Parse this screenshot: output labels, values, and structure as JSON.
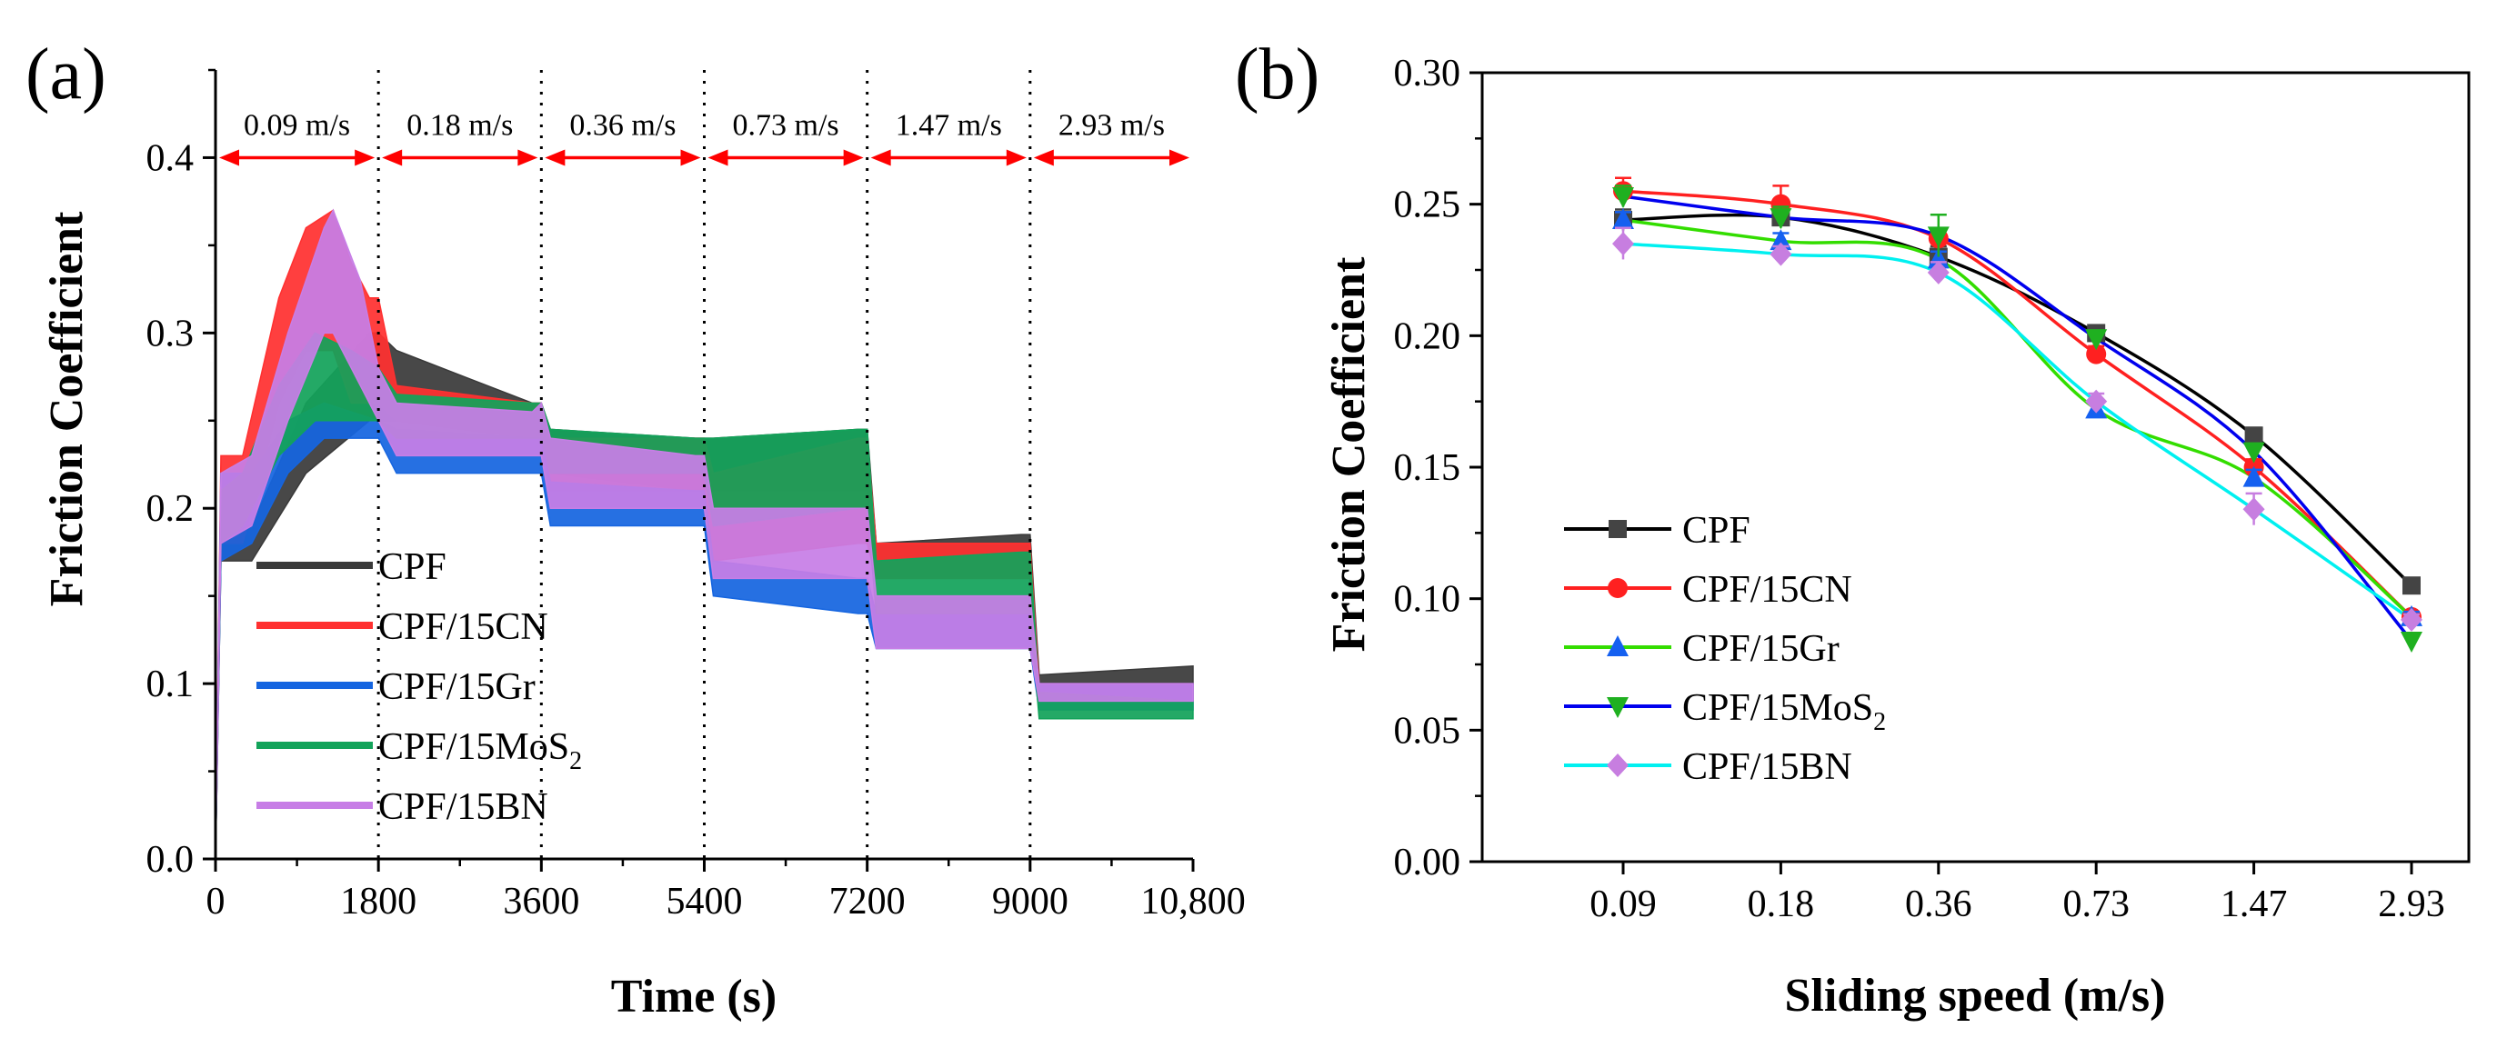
{
  "colors": {
    "CPF": "#3a3a3a",
    "CPF/15CN": "#ff3030",
    "CPF/15Gr": "#1565e0",
    "CPF/15MoS2": "#13a35a",
    "CPF/15BN": "#c77ee6",
    "b_CPF": "#000000",
    "b_CN": "#ff2020",
    "b_Gr": "#33dd00",
    "b_MoS2": "#0000ee",
    "b_BN": "#00f0f0",
    "b_Gr_marker": "#1560f0",
    "b_MoS2_marker": "#1fb020",
    "b_BN_marker": "#c77ee0",
    "speed_marker": "#ff0000"
  },
  "chart_data": [
    {
      "type": "line",
      "panel_label": "(a)",
      "xlabel": "Time (s)",
      "ylabel": "Friction Coefficient",
      "xlim": [
        0,
        10800
      ],
      "ylim": [
        0,
        0.45
      ],
      "xticks": [
        0,
        1800,
        3600,
        5400,
        7200,
        9000,
        10800
      ],
      "xtick_labels": [
        "0",
        "1800",
        "3600",
        "5400",
        "7200",
        "9000",
        "10,800"
      ],
      "yticks": [
        0.0,
        0.1,
        0.2,
        0.3,
        0.4
      ],
      "ytick_labels": [
        "0.0",
        "0.1",
        "0.2",
        "0.3",
        "0.4"
      ],
      "grid": false,
      "legend": "lower-left",
      "speed_segments": [
        {
          "label": "0.09 m/s",
          "start": 0,
          "end": 1800
        },
        {
          "label": "0.18 m/s",
          "start": 1800,
          "end": 3600
        },
        {
          "label": "0.36 m/s",
          "start": 3600,
          "end": 5400
        },
        {
          "label": "0.73 m/s",
          "start": 5400,
          "end": 7200
        },
        {
          "label": "1.47 m/s",
          "start": 7200,
          "end": 9000
        },
        {
          "label": "2.93 m/s",
          "start": 9000,
          "end": 10800
        }
      ],
      "series": [
        {
          "name": "CPF",
          "legend_main": "CPF",
          "legend_sub": "",
          "x": [
            0,
            60,
            400,
            1000,
            1700,
            1800,
            2000,
            3500,
            3600,
            3700,
            5300,
            5400,
            5500,
            7100,
            7200,
            7300,
            8900,
            9000,
            9100,
            10800
          ],
          "low": [
            0,
            0.17,
            0.17,
            0.22,
            0.25,
            0.25,
            0.25,
            0.24,
            0.24,
            0.22,
            0.21,
            0.21,
            0.21,
            0.21,
            0.21,
            0.16,
            0.16,
            0.16,
            0.1,
            0.1
          ],
          "high": [
            0,
            0.19,
            0.19,
            0.26,
            0.3,
            0.3,
            0.29,
            0.26,
            0.26,
            0.245,
            0.24,
            0.24,
            0.24,
            0.245,
            0.245,
            0.18,
            0.185,
            0.185,
            0.105,
            0.11
          ]
        },
        {
          "name": "CPF/15CN",
          "legend_main": "CPF/15CN",
          "legend_sub": "",
          "x": [
            0,
            60,
            300,
            700,
            1000,
            1300,
            1500,
            1700,
            1800,
            2000,
            3500,
            3600,
            3700,
            5300,
            5400,
            5500,
            7100,
            7200,
            7300,
            8900,
            9000,
            9100,
            10800
          ],
          "low": [
            0,
            0.18,
            0.18,
            0.26,
            0.29,
            0.29,
            0.26,
            0.26,
            0.26,
            0.25,
            0.24,
            0.24,
            0.21,
            0.21,
            0.21,
            0.17,
            0.18,
            0.18,
            0.16,
            0.16,
            0.16,
            0.09,
            0.09
          ],
          "high": [
            0,
            0.23,
            0.23,
            0.32,
            0.36,
            0.37,
            0.34,
            0.32,
            0.32,
            0.27,
            0.26,
            0.26,
            0.24,
            0.24,
            0.24,
            0.22,
            0.24,
            0.24,
            0.18,
            0.18,
            0.18,
            0.1,
            0.1
          ]
        },
        {
          "name": "CPF/15Gr",
          "legend_main": "CPF/15Gr",
          "legend_sub": "",
          "x": [
            0,
            60,
            400,
            800,
            1200,
            1800,
            2000,
            3500,
            3600,
            3700,
            5300,
            5400,
            5500,
            7100,
            7200,
            7300,
            8900,
            9000,
            9100,
            10800
          ],
          "low": [
            0,
            0.17,
            0.18,
            0.22,
            0.24,
            0.24,
            0.22,
            0.22,
            0.22,
            0.19,
            0.19,
            0.19,
            0.15,
            0.14,
            0.14,
            0.12,
            0.12,
            0.12,
            0.085,
            0.085
          ],
          "high": [
            0,
            0.22,
            0.22,
            0.25,
            0.26,
            0.25,
            0.245,
            0.24,
            0.24,
            0.215,
            0.21,
            0.21,
            0.17,
            0.16,
            0.16,
            0.14,
            0.14,
            0.14,
            0.1,
            0.1
          ]
        },
        {
          "name": "CPF/15MoS2",
          "legend_main": "CPF/15MoS",
          "legend_sub": "2",
          "x": [
            0,
            60,
            300,
            700,
            1100,
            1500,
            1800,
            2000,
            3500,
            3600,
            3700,
            5300,
            5400,
            5500,
            7100,
            7200,
            7300,
            8900,
            9000,
            9100,
            10800
          ],
          "low": [
            0,
            0.18,
            0.19,
            0.23,
            0.25,
            0.25,
            0.25,
            0.24,
            0.24,
            0.24,
            0.22,
            0.22,
            0.22,
            0.19,
            0.2,
            0.2,
            0.14,
            0.14,
            0.14,
            0.08,
            0.08
          ],
          "high": [
            0,
            0.21,
            0.22,
            0.27,
            0.3,
            0.29,
            0.28,
            0.265,
            0.26,
            0.26,
            0.245,
            0.24,
            0.24,
            0.24,
            0.245,
            0.245,
            0.17,
            0.175,
            0.175,
            0.095,
            0.09
          ]
        },
        {
          "name": "CPF/15BN",
          "legend_main": "CPF/15BN",
          "legend_sub": "",
          "x": [
            0,
            60,
            400,
            800,
            1200,
            1300,
            1600,
            1800,
            2000,
            3500,
            3600,
            3700,
            5300,
            5400,
            5500,
            7100,
            7200,
            7300,
            8900,
            9000,
            9100,
            10800
          ],
          "low": [
            0,
            0.18,
            0.19,
            0.25,
            0.3,
            0.3,
            0.27,
            0.25,
            0.23,
            0.23,
            0.23,
            0.2,
            0.2,
            0.2,
            0.16,
            0.16,
            0.16,
            0.12,
            0.12,
            0.12,
            0.09,
            0.09
          ],
          "high": [
            0,
            0.22,
            0.23,
            0.3,
            0.36,
            0.37,
            0.33,
            0.28,
            0.26,
            0.255,
            0.26,
            0.24,
            0.23,
            0.23,
            0.2,
            0.2,
            0.2,
            0.15,
            0.15,
            0.15,
            0.1,
            0.1
          ]
        }
      ]
    },
    {
      "type": "line",
      "panel_label": "(b)",
      "xlabel": "Sliding speed (m/s)",
      "ylabel": "Friction Coefficient",
      "categories": [
        "0.09",
        "0.18",
        "0.36",
        "0.73",
        "1.47",
        "2.93"
      ],
      "ylim": [
        0,
        0.3
      ],
      "yticks": [
        0.0,
        0.05,
        0.1,
        0.15,
        0.2,
        0.25,
        0.3
      ],
      "ytick_labels": [
        "0.00",
        "0.05",
        "0.10",
        "0.15",
        "0.20",
        "0.25",
        "0.30"
      ],
      "grid": false,
      "legend": "lower-left",
      "series": [
        {
          "name": "CPF",
          "legend_main": "CPF",
          "legend_sub": "",
          "marker": "square",
          "values": [
            0.244,
            0.245,
            0.23,
            0.201,
            0.162,
            0.105
          ],
          "errors": [
            0.004,
            0.003,
            0.004,
            0.002,
            0.003,
            0.002
          ]
        },
        {
          "name": "CPF/15CN",
          "legend_main": "CPF/15CN",
          "legend_sub": "",
          "marker": "circle",
          "values": [
            0.255,
            0.25,
            0.237,
            0.193,
            0.15,
            0.093
          ],
          "errors": [
            0.005,
            0.007,
            0.004,
            0.003,
            0.003,
            0.002
          ]
        },
        {
          "name": "CPF/15Gr",
          "legend_main": "CPF/15Gr",
          "legend_sub": "",
          "marker": "triangle-up",
          "values": [
            0.244,
            0.236,
            0.229,
            0.172,
            0.146,
            0.093
          ],
          "errors": [
            0.003,
            0.003,
            0.003,
            0.003,
            0.003,
            0.002
          ]
        },
        {
          "name": "CPF/15MoS2",
          "legend_main": "CPF/15MoS",
          "legend_sub": "2",
          "marker": "triangle-down",
          "values": [
            0.253,
            0.245,
            0.238,
            0.199,
            0.156,
            0.084
          ],
          "errors": [
            0.004,
            0.004,
            0.008,
            0.003,
            0.003,
            0.002
          ]
        },
        {
          "name": "CPF/15BN",
          "legend_main": "CPF/15BN",
          "legend_sub": "",
          "marker": "diamond",
          "values": [
            0.235,
            0.231,
            0.224,
            0.175,
            0.134,
            0.092
          ],
          "errors": [
            0.006,
            0.003,
            0.004,
            0.003,
            0.006,
            0.002
          ]
        }
      ]
    }
  ]
}
